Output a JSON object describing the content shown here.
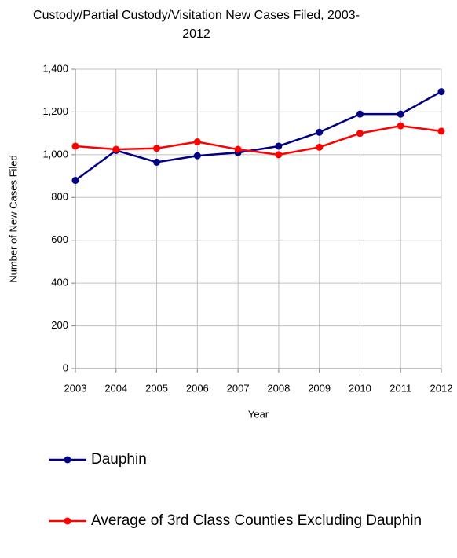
{
  "chart_data": {
    "type": "line",
    "title": "Custody/Partial Custody/Visitation New Cases Filed, 2003-2012",
    "x_label": "Year",
    "y_label": "Number of New Cases Filed",
    "categories": [
      "2003",
      "2004",
      "2005",
      "2006",
      "2007",
      "2008",
      "2009",
      "2010",
      "2011",
      "2012"
    ],
    "series": [
      {
        "name": "Dauphin",
        "color": "#000080",
        "values": [
          880,
          1020,
          965,
          995,
          1010,
          1040,
          1105,
          1190,
          1190,
          1295
        ]
      },
      {
        "name": "Average of 3rd Class Counties Excluding Dauphin",
        "color": "#ff0000",
        "values": [
          1040,
          1025,
          1030,
          1060,
          1025,
          1000,
          1035,
          1100,
          1135,
          1110
        ]
      }
    ],
    "ylim": [
      0,
      1400
    ],
    "yticks": [
      0,
      200,
      400,
      600,
      800,
      {
        "value": 1000,
        "label": "1,000"
      },
      {
        "value": 1200,
        "label": "1,200"
      },
      {
        "value": 1400,
        "label": "1,400"
      }
    ],
    "grid": true
  }
}
